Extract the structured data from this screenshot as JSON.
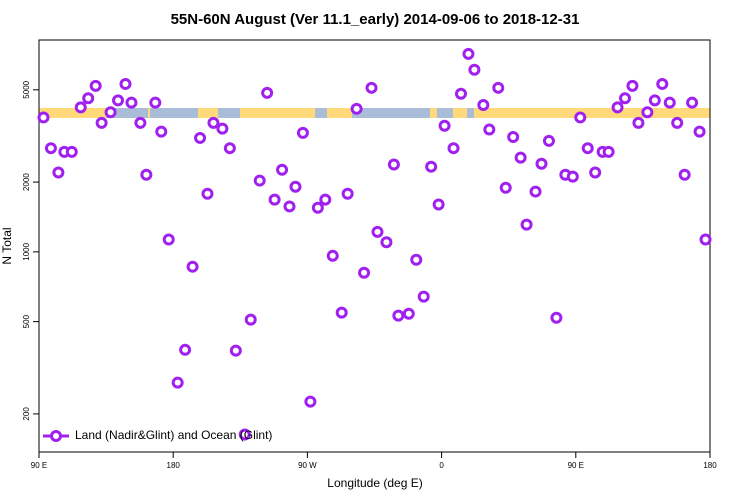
{
  "chart_data": {
    "type": "scatter",
    "title": "55N-60N August (Ver 11.1_early)   2014-09-06 to 2018-12-31",
    "xlabel": "Longitude (deg E)",
    "ylabel": "N Total",
    "xlim": [
      90,
      540
    ],
    "xticks": [
      {
        "value": 90,
        "label": "90 E"
      },
      180,
      {
        "value": 270,
        "label": "90 W"
      },
      {
        "value": 360,
        "label": "0"
      },
      {
        "value": 450,
        "label": "90 E"
      },
      {
        "value": 540,
        "label": "180"
      }
    ],
    "ylim": [
      137,
      8200
    ],
    "ylog": true,
    "yticks": [
      200,
      500,
      1000,
      2000,
      5000
    ],
    "legend": "bottom-left",
    "series": [
      {
        "name": "Land (Nadir&Glint) and Ocean (Glint)",
        "color": "#a020f0",
        "x": [
          93,
          98,
          103,
          107,
          112,
          118,
          123,
          128,
          132,
          138,
          143,
          148,
          152,
          158,
          162,
          168,
          172,
          177,
          183,
          188,
          193,
          198,
          203,
          207,
          213,
          218,
          222,
          228,
          232,
          238,
          243,
          248,
          253,
          258,
          262,
          267,
          272,
          277,
          282,
          287,
          293,
          297,
          303,
          308,
          313,
          317,
          323,
          328,
          331,
          338,
          343,
          348,
          353,
          358,
          362,
          368,
          373,
          378,
          382,
          388,
          392,
          398,
          403,
          408,
          413,
          417,
          423,
          427,
          432,
          437,
          443,
          448,
          453,
          458,
          463,
          468,
          472,
          478,
          483,
          488,
          492,
          498,
          503,
          508,
          513,
          518,
          523,
          528,
          533,
          537
        ],
        "values": [
          3800,
          2800,
          2200,
          2700,
          2700,
          4200,
          4600,
          5200,
          3600,
          4000,
          4500,
          5300,
          4400,
          3600,
          2150,
          4400,
          3300,
          1130,
          273,
          378,
          863,
          3100,
          1780,
          3600,
          3400,
          2800,
          375,
          163,
          510,
          2030,
          4850,
          1680,
          2260,
          1570,
          1910,
          3260,
          226,
          1550,
          1680,
          962,
          547,
          1780,
          4140,
          813,
          5100,
          1220,
          1100,
          2380,
          531,
          541,
          925,
          641,
          2330,
          1600,
          3500,
          2800,
          4810,
          7140,
          6100,
          4300,
          3370,
          5100,
          1890,
          3130,
          2550,
          1310,
          1820,
          2400,
          3010,
          520,
          2150,
          2110,
          3800,
          2800,
          2200,
          2700,
          2700,
          4200,
          4600,
          5200,
          3600,
          4000,
          4500,
          5300,
          4400,
          3600,
          2150,
          4400,
          3300,
          1130
        ]
      }
    ]
  }
}
